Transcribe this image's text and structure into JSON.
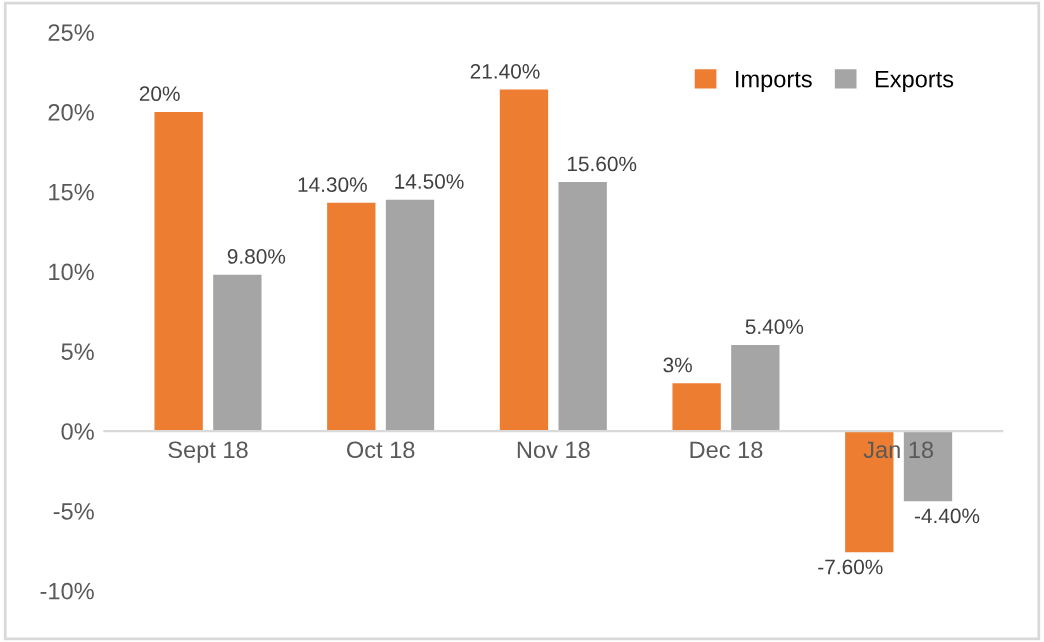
{
  "chart_data": {
    "type": "bar",
    "categories": [
      "Sept 18",
      "Oct 18",
      "Nov 18",
      "Dec 18",
      "Jan 18"
    ],
    "series": [
      {
        "name": "Imports",
        "color": "#ed7d31",
        "values": [
          20,
          14.3,
          21.4,
          3,
          -7.6
        ],
        "value_labels": [
          "20%",
          "14.30%",
          "21.40%",
          "3%",
          "-7.60%"
        ]
      },
      {
        "name": "Exports",
        "color": "#a5a5a5",
        "values": [
          9.8,
          14.5,
          15.6,
          5.4,
          -4.4
        ],
        "value_labels": [
          "9.80%",
          "14.50%",
          "15.60%",
          "5.40%",
          "-4.40%"
        ]
      }
    ],
    "ylim": [
      -10,
      25
    ],
    "yticks": [
      {
        "value": -10,
        "label": "-10%"
      },
      {
        "value": -5,
        "label": "-5%"
      },
      {
        "value": 0,
        "label": "0%"
      },
      {
        "value": 5,
        "label": "5%"
      },
      {
        "value": 10,
        "label": "10%"
      },
      {
        "value": 15,
        "label": "15%"
      },
      {
        "value": 20,
        "label": "20%"
      },
      {
        "value": 25,
        "label": "25%"
      }
    ],
    "grid": false,
    "legend": "top right"
  }
}
